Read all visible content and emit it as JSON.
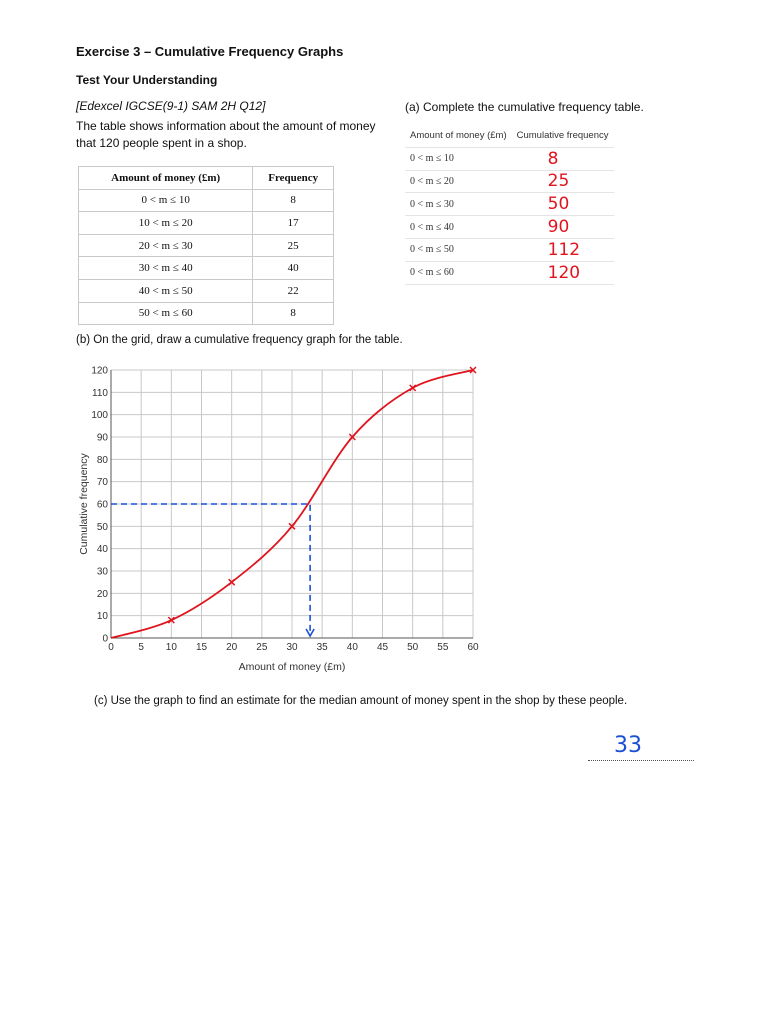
{
  "heading": {
    "title": "Exercise 3 – Cumulative Frequency Graphs",
    "subtitle": "Test Your Understanding",
    "reference": "[Edexcel IGCSE(9-1) SAM 2H Q12]",
    "intro": "The table shows information about the amount of money that 120 people spent in a shop."
  },
  "frequency_table": {
    "headers": [
      "Amount of money (£m)",
      "Frequency"
    ],
    "rows": [
      {
        "range": "0 < m ≤ 10",
        "freq": "8"
      },
      {
        "range": "10 < m ≤ 20",
        "freq": "17"
      },
      {
        "range": "20 < m ≤ 30",
        "freq": "25"
      },
      {
        "range": "30 < m ≤ 40",
        "freq": "40"
      },
      {
        "range": "40 < m ≤ 50",
        "freq": "22"
      },
      {
        "range": "50 < m ≤ 60",
        "freq": "8"
      }
    ]
  },
  "part_a": {
    "question": "(a) Complete the cumulative frequency table.",
    "headers": [
      "Amount of money (£m)",
      "Cumulative frequency"
    ],
    "rows": [
      {
        "range": "0 < m ≤ 10",
        "answer": "8"
      },
      {
        "range": "0 < m ≤ 20",
        "answer": "25"
      },
      {
        "range": "0 < m ≤ 30",
        "answer": "50"
      },
      {
        "range": "0 < m ≤ 40",
        "answer": "90"
      },
      {
        "range": "0 < m ≤ 50",
        "answer": "112"
      },
      {
        "range": "0 < m ≤ 60",
        "answer": "120"
      }
    ]
  },
  "part_b": {
    "question": "(b) On the grid, draw a cumulative frequency graph for the table."
  },
  "part_c": {
    "question": "(c) Use the graph to find an estimate for the median amount of money spent in the shop by these people.",
    "answer": "33"
  },
  "chart_data": {
    "type": "line",
    "xlabel": "Amount of money (£m)",
    "ylabel": "Cumulative frequency",
    "xlim": [
      0,
      60
    ],
    "ylim": [
      0,
      120
    ],
    "x_ticks": [
      "0",
      "5",
      "10",
      "15",
      "20",
      "25",
      "30",
      "35",
      "40",
      "45",
      "50",
      "55",
      "60"
    ],
    "y_ticks": [
      "0",
      "10",
      "20",
      "30",
      "40",
      "50",
      "60",
      "70",
      "80",
      "90",
      "100",
      "110",
      "120"
    ],
    "grid": true,
    "series": [
      {
        "x": [
          0,
          10,
          20,
          30,
          40,
          50,
          60
        ],
        "y": [
          0,
          8,
          25,
          50,
          90,
          112,
          120
        ],
        "color": "#e1141e",
        "markers": "cross"
      }
    ],
    "median_lines": {
      "y": 60,
      "x": 33,
      "color": "#1a4fd6",
      "style": "dashed"
    }
  }
}
